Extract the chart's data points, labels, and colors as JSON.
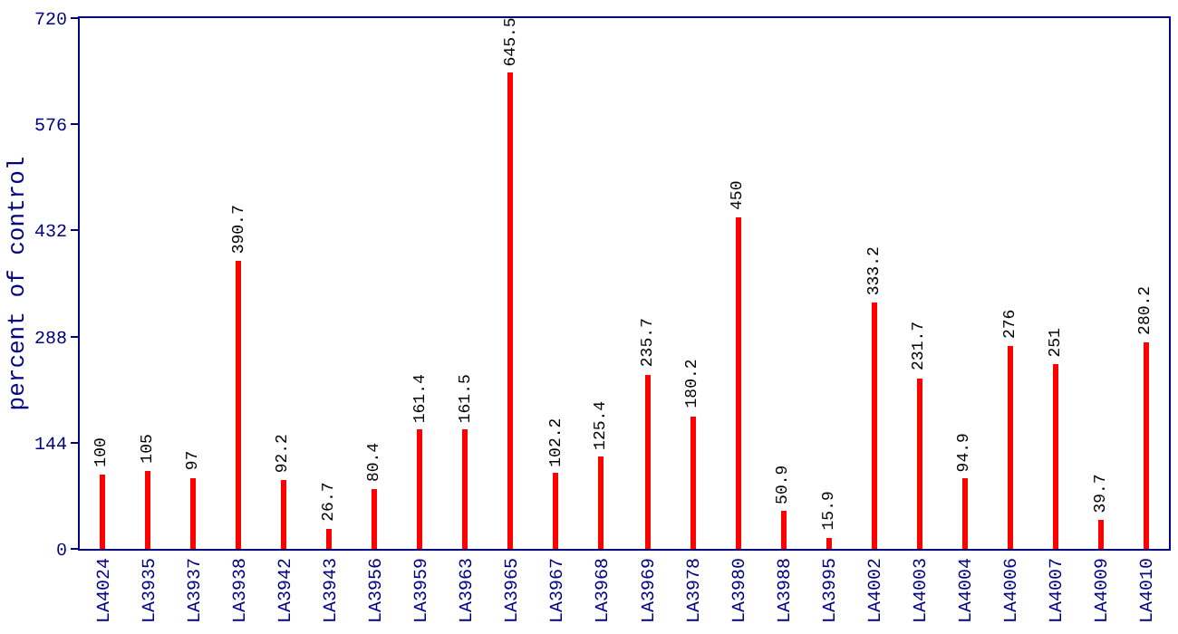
{
  "chart_data": {
    "type": "bar",
    "ylabel": "percent of control",
    "categories": [
      "LA4024",
      "LA3935",
      "LA3937",
      "LA3938",
      "LA3942",
      "LA3943",
      "LA3956",
      "LA3959",
      "LA3963",
      "LA3965",
      "LA3967",
      "LA3968",
      "LA3969",
      "LA3978",
      "LA3980",
      "LA3988",
      "LA3995",
      "LA4002",
      "LA4003",
      "LA4004",
      "LA4006",
      "LA4007",
      "LA4009",
      "LA4010"
    ],
    "values": [
      100,
      105,
      97,
      390.7,
      92.2,
      26.7,
      80.4,
      161.4,
      161.5,
      645.5,
      102.2,
      125.4,
      235.7,
      180.2,
      450,
      50.9,
      15.9,
      333.2,
      231.7,
      94.9,
      276,
      251,
      39.7,
      280.2
    ],
    "color": "#ff0000",
    "ylim": [
      0,
      720
    ],
    "yticks": [
      0,
      144,
      288,
      432,
      576,
      720
    ],
    "data_labels": true
  }
}
